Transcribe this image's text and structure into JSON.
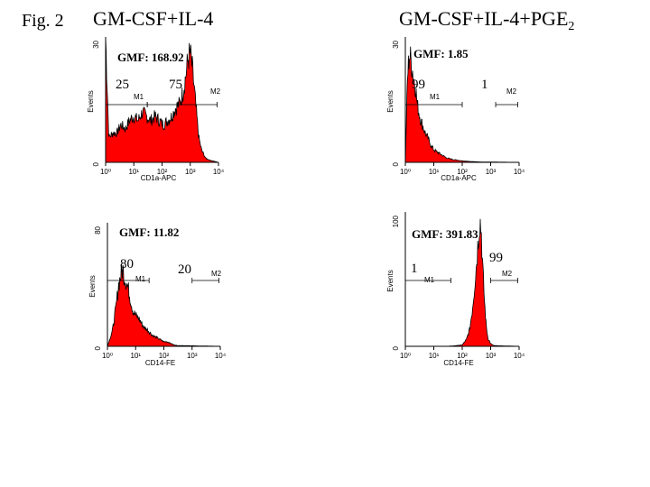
{
  "figure": {
    "label": "Fig. 2",
    "column_titles": [
      "GM-CSF+IL-4",
      "GM-CSF+IL-4+PGE",
      "2"
    ]
  },
  "colors": {
    "fill": "#ff0000",
    "stroke": "#000000"
  },
  "chart_data": [
    {
      "type": "area",
      "xlabel": "CD1a-APC",
      "ylabel": "Events",
      "xscale": "log",
      "xlim": [
        1,
        10000
      ],
      "ylim": [
        0,
        30
      ],
      "xticks": [
        "10⁰",
        "10¹",
        "10²",
        "10³",
        "10⁴"
      ],
      "yticks": [
        "0",
        "30"
      ],
      "gmf": "GMF: 168.92",
      "gates": [
        {
          "name": "M1",
          "range": [
            1,
            30
          ],
          "percent": "25"
        },
        {
          "name": "M2",
          "range": [
            30,
            9000
          ],
          "percent": "75"
        }
      ],
      "series": [
        {
          "x": [
            1,
            1.3,
            1.8,
            2.5,
            3.5,
            5,
            7,
            10,
            14,
            20,
            28,
            40,
            56,
            80,
            110,
            160,
            220,
            300,
            420,
            560,
            700,
            850,
            1000,
            1200,
            1500,
            2000,
            2500,
            3500,
            5000,
            10000
          ],
          "y": [
            30,
            6,
            7,
            7,
            9,
            8,
            10,
            11,
            10,
            12,
            11,
            10,
            11,
            10,
            9,
            10,
            11,
            13,
            14,
            17,
            21,
            25,
            26,
            22,
            15,
            6,
            3,
            1,
            0.5,
            0
          ]
        }
      ]
    },
    {
      "type": "area",
      "xlabel": "CD1a-APC",
      "ylabel": "Events",
      "xscale": "log",
      "xlim": [
        1,
        10000
      ],
      "ylim": [
        0,
        30
      ],
      "xticks": [
        "10⁰",
        "10¹",
        "10²",
        "10³",
        "10⁴"
      ],
      "yticks": [
        "0",
        "30"
      ],
      "gmf": "GMF: 1.85",
      "gates": [
        {
          "name": "M1",
          "range": [
            1,
            100
          ],
          "percent": "99"
        },
        {
          "name": "M2",
          "range": [
            1500,
            9000
          ],
          "percent": "1"
        }
      ],
      "series": [
        {
          "x": [
            1,
            1.2,
            1.4,
            1.6,
            1.8,
            2,
            2.3,
            2.6,
            3,
            3.5,
            4,
            5,
            6,
            7,
            8,
            10,
            13,
            17,
            22,
            30,
            45,
            70,
            120,
            200,
            400,
            10000
          ],
          "y": [
            0,
            21,
            26,
            24,
            22,
            20,
            18,
            14,
            12,
            10,
            9,
            7,
            6,
            5,
            4,
            3,
            2.5,
            2,
            1.5,
            1,
            0.7,
            0.5,
            0.3,
            0.2,
            0.1,
            0
          ]
        }
      ]
    },
    {
      "type": "area",
      "xlabel": "CD14-FE",
      "ylabel": "Events",
      "xscale": "log",
      "xlim": [
        1,
        10000
      ],
      "ylim": [
        0,
        80
      ],
      "xticks": [
        "10⁰",
        "10¹",
        "10²",
        "10³",
        "10⁴"
      ],
      "yticks": [
        "0",
        "80"
      ],
      "gmf": "GMF: 11.82",
      "gates": [
        {
          "name": "M1",
          "range": [
            1,
            30
          ],
          "percent": "80"
        },
        {
          "name": "M2",
          "range": [
            1000,
            9000
          ],
          "percent": "20"
        }
      ],
      "series": [
        {
          "x": [
            1,
            1.5,
            2,
            2.5,
            3,
            3.5,
            4,
            5,
            6,
            7,
            8,
            10,
            13,
            16,
            20,
            25,
            32,
            40,
            50,
            65,
            80,
            100,
            130,
            170,
            220,
            300,
            10000
          ],
          "y": [
            0,
            10,
            25,
            40,
            46,
            50,
            45,
            40,
            34,
            28,
            23,
            20,
            18,
            15,
            12,
            11,
            9,
            7,
            6,
            5,
            4,
            3,
            3,
            2,
            1,
            0.5,
            0
          ]
        }
      ]
    },
    {
      "type": "area",
      "xlabel": "CD14-FE",
      "ylabel": "Events",
      "xscale": "log",
      "xlim": [
        1,
        10000
      ],
      "ylim": [
        0,
        100
      ],
      "xticks": [
        "10⁰",
        "10¹",
        "10²",
        "10³",
        "10⁴"
      ],
      "yticks": [
        "0",
        "100"
      ],
      "gmf": "GMF: 391.83",
      "gates": [
        {
          "name": "M1",
          "range": [
            1,
            40
          ],
          "percent": "1"
        },
        {
          "name": "M2",
          "range": [
            1000,
            9000
          ],
          "percent": "99"
        }
      ],
      "series": [
        {
          "x": [
            1,
            30,
            60,
            100,
            140,
            180,
            220,
            260,
            300,
            340,
            380,
            420,
            470,
            520,
            600,
            700,
            800,
            1000,
            1300,
            10000
          ],
          "y": [
            0,
            0,
            0.5,
            1,
            5,
            12,
            25,
            40,
            55,
            70,
            85,
            95,
            85,
            60,
            35,
            15,
            6,
            2,
            0.5,
            0
          ]
        }
      ]
    }
  ]
}
